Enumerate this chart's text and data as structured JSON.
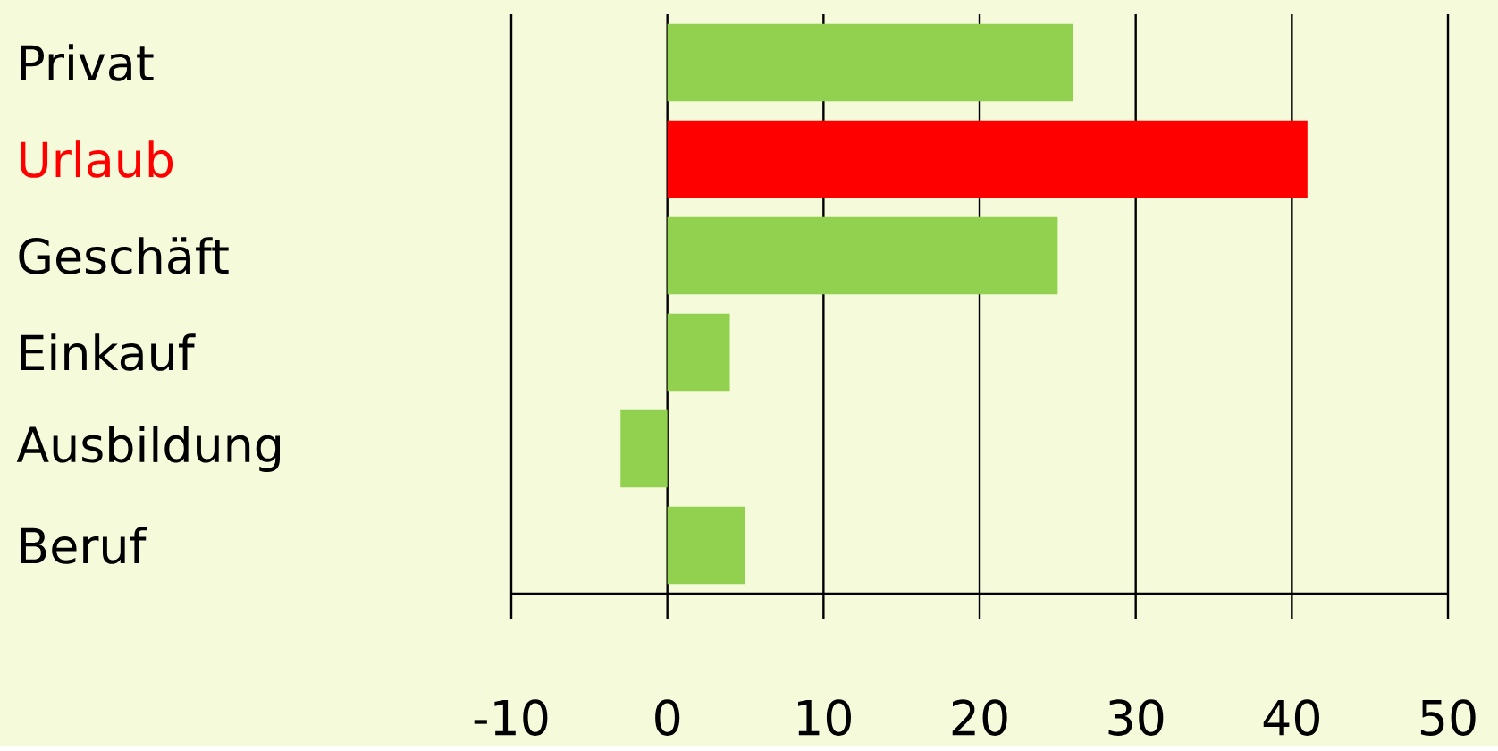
{
  "chart_data": {
    "type": "bar",
    "orientation": "horizontal",
    "categories": [
      "Privat",
      "Urlaub",
      "Geschäft",
      "Einkauf",
      "Ausbildung",
      "Beruf"
    ],
    "values": [
      26,
      41,
      25,
      4,
      -3,
      5
    ],
    "colors": [
      "#92d050",
      "#ff0000",
      "#92d050",
      "#92d050",
      "#92d050",
      "#92d050"
    ],
    "xlim": [
      -10,
      50
    ],
    "xticks": [
      -10,
      0,
      10,
      20,
      30,
      40,
      50
    ],
    "grid": "x"
  }
}
